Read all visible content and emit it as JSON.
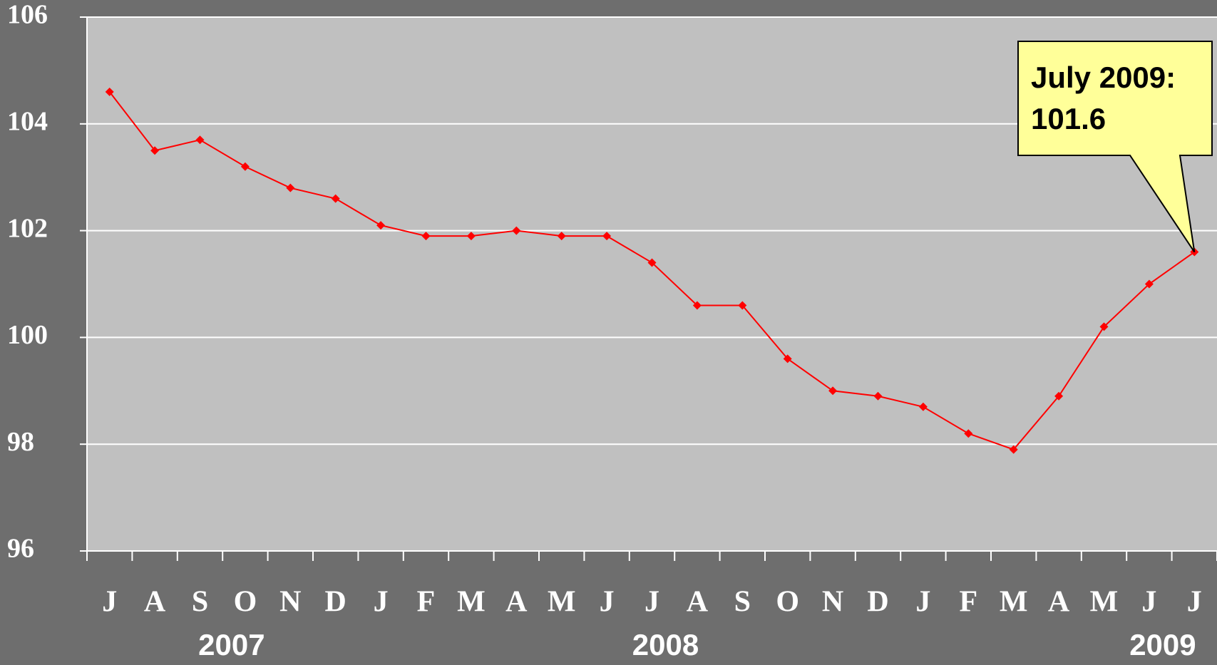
{
  "chart_data": {
    "type": "line",
    "categories": [
      "J",
      "A",
      "S",
      "O",
      "N",
      "D",
      "J",
      "F",
      "M",
      "A",
      "M",
      "J",
      "J",
      "A",
      "S",
      "O",
      "N",
      "D",
      "J",
      "F",
      "M",
      "A",
      "M",
      "J",
      "J"
    ],
    "year_labels": [
      "2007",
      "2008",
      "2009"
    ],
    "series": [
      {
        "color": "#ff0000",
        "values": [
          104.6,
          103.5,
          103.7,
          103.2,
          102.8,
          102.6,
          102.1,
          101.9,
          101.9,
          102.0,
          101.9,
          101.9,
          101.4,
          100.6,
          100.6,
          99.6,
          99.0,
          98.9,
          98.7,
          98.2,
          97.9,
          98.9,
          100.2,
          101.0,
          101.6
        ]
      }
    ],
    "ylim": [
      96,
      106
    ],
    "yticks": [
      96,
      98,
      100,
      102,
      104,
      106
    ],
    "grid": true,
    "annotation": {
      "lines": [
        "July 2009:",
        "101.6"
      ]
    }
  }
}
